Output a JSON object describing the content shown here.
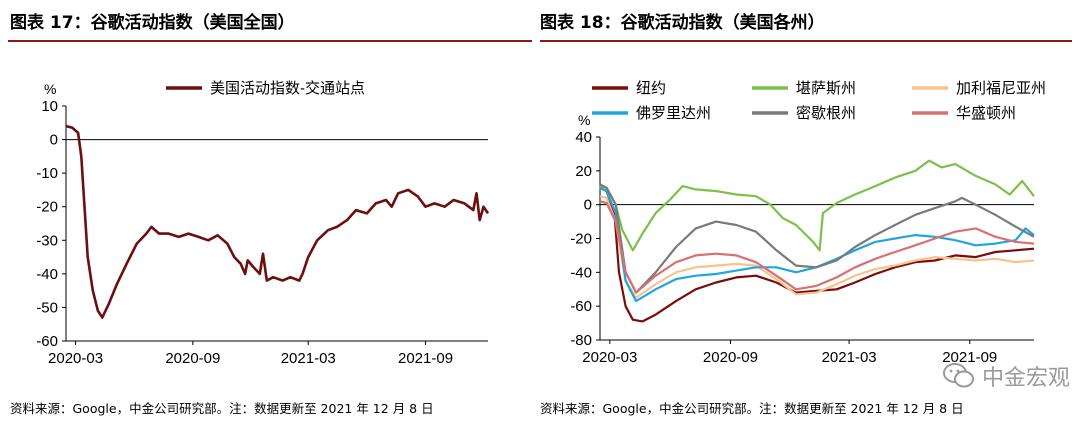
{
  "left": {
    "title": "图表 17：谷歌活动指数（美国全国）",
    "source": "资料来源：Google，中金公司研究部。注：数据更新至 2021 年 12 月 8 日",
    "unit": "%"
  },
  "right": {
    "title": "图表 18：谷歌活动指数（美国各州）",
    "source": "资料来源：Google，中金公司研究部。注：数据更新至 2021 年 12 月 8 日",
    "unit": "%"
  },
  "watermark": {
    "text": "中金宏观",
    "icon": "wechat-icon"
  },
  "chart_data": [
    {
      "type": "line",
      "ylim": [
        -60,
        10
      ],
      "yticks": [
        10,
        0,
        -10,
        -20,
        -30,
        -40,
        -50,
        -60
      ],
      "xticks": [
        "2020-03",
        "2020-09",
        "2021-03",
        "2021-09"
      ],
      "xrange": [
        "2020-02-15",
        "2021-12-08"
      ],
      "grid": false,
      "legend_position": "top-right",
      "series": [
        {
          "name": "美国活动指数-交通站点",
          "color": "#6b0f0f",
          "points": [
            [
              "2020-02-15",
              4
            ],
            [
              "2020-02-25",
              3.5
            ],
            [
              "2020-03-05",
              2
            ],
            [
              "2020-03-10",
              -5
            ],
            [
              "2020-03-15",
              -20
            ],
            [
              "2020-03-20",
              -35
            ],
            [
              "2020-03-28",
              -45
            ],
            [
              "2020-04-05",
              -51
            ],
            [
              "2020-04-12",
              -53
            ],
            [
              "2020-04-22",
              -49
            ],
            [
              "2020-05-05",
              -43
            ],
            [
              "2020-05-20",
              -37
            ],
            [
              "2020-06-05",
              -31
            ],
            [
              "2020-06-20",
              -28
            ],
            [
              "2020-06-28",
              -26
            ],
            [
              "2020-07-10",
              -28
            ],
            [
              "2020-07-25",
              -28
            ],
            [
              "2020-08-10",
              -29
            ],
            [
              "2020-08-25",
              -28
            ],
            [
              "2020-09-10",
              -29
            ],
            [
              "2020-09-25",
              -30
            ],
            [
              "2020-10-10",
              -28.5
            ],
            [
              "2020-10-25",
              -31
            ],
            [
              "2020-11-05",
              -35
            ],
            [
              "2020-11-15",
              -37
            ],
            [
              "2020-11-22",
              -40
            ],
            [
              "2020-11-26",
              -36
            ],
            [
              "2020-12-05",
              -38
            ],
            [
              "2020-12-15",
              -40
            ],
            [
              "2020-12-20",
              -34
            ],
            [
              "2020-12-26",
              -42
            ],
            [
              "2021-01-05",
              -41
            ],
            [
              "2021-01-20",
              -42
            ],
            [
              "2021-02-01",
              -41
            ],
            [
              "2021-02-15",
              -42
            ],
            [
              "2021-02-20",
              -40
            ],
            [
              "2021-03-01",
              -35
            ],
            [
              "2021-03-15",
              -30
            ],
            [
              "2021-04-01",
              -27
            ],
            [
              "2021-04-15",
              -26
            ],
            [
              "2021-05-01",
              -24
            ],
            [
              "2021-05-15",
              -21
            ],
            [
              "2021-06-01",
              -22
            ],
            [
              "2021-06-15",
              -19
            ],
            [
              "2021-07-01",
              -18
            ],
            [
              "2021-07-10",
              -20
            ],
            [
              "2021-07-20",
              -16
            ],
            [
              "2021-08-05",
              -15
            ],
            [
              "2021-08-20",
              -17
            ],
            [
              "2021-09-01",
              -20
            ],
            [
              "2021-09-15",
              -19
            ],
            [
              "2021-10-01",
              -20
            ],
            [
              "2021-10-15",
              -18
            ],
            [
              "2021-11-01",
              -19
            ],
            [
              "2021-11-15",
              -21
            ],
            [
              "2021-11-20",
              -16
            ],
            [
              "2021-11-25",
              -24
            ],
            [
              "2021-12-01",
              -20
            ],
            [
              "2021-12-08",
              -22
            ]
          ]
        }
      ]
    },
    {
      "type": "line",
      "ylim": [
        -80,
        40
      ],
      "yticks": [
        40,
        20,
        0,
        -20,
        -40,
        -60,
        -80
      ],
      "xticks": [
        "2020-03",
        "2020-09",
        "2021-03",
        "2021-09"
      ],
      "xrange": [
        "2020-02-15",
        "2021-12-08"
      ],
      "grid": false,
      "legend_position": "top",
      "series": [
        {
          "name": "纽约",
          "color": "#7a0c0c",
          "points": [
            [
              "2020-02-15",
              10
            ],
            [
              "2020-02-25",
              8
            ],
            [
              "2020-03-08",
              -5
            ],
            [
              "2020-03-15",
              -40
            ],
            [
              "2020-03-25",
              -60
            ],
            [
              "2020-04-05",
              -68
            ],
            [
              "2020-04-20",
              -69
            ],
            [
              "2020-05-10",
              -65
            ],
            [
              "2020-06-10",
              -57
            ],
            [
              "2020-07-10",
              -50
            ],
            [
              "2020-08-10",
              -46
            ],
            [
              "2020-09-10",
              -43
            ],
            [
              "2020-10-10",
              -42
            ],
            [
              "2020-11-10",
              -46
            ],
            [
              "2020-12-10",
              -52
            ],
            [
              "2021-01-10",
              -51
            ],
            [
              "2021-02-10",
              -50
            ],
            [
              "2021-03-10",
              -46
            ],
            [
              "2021-04-10",
              -41
            ],
            [
              "2021-05-10",
              -37
            ],
            [
              "2021-06-10",
              -34
            ],
            [
              "2021-07-10",
              -33
            ],
            [
              "2021-08-10",
              -30
            ],
            [
              "2021-09-10",
              -31
            ],
            [
              "2021-10-10",
              -28
            ],
            [
              "2021-11-10",
              -27
            ],
            [
              "2021-12-08",
              -26
            ]
          ]
        },
        {
          "name": "堪萨斯州",
          "color": "#7cc04a",
          "points": [
            [
              "2020-02-15",
              11
            ],
            [
              "2020-02-25",
              10
            ],
            [
              "2020-03-10",
              0
            ],
            [
              "2020-03-20",
              -15
            ],
            [
              "2020-04-05",
              -27
            ],
            [
              "2020-04-20",
              -17
            ],
            [
              "2020-05-10",
              -5
            ],
            [
              "2020-06-01",
              3
            ],
            [
              "2020-06-20",
              11
            ],
            [
              "2020-07-10",
              9
            ],
            [
              "2020-08-10",
              8
            ],
            [
              "2020-09-10",
              6
            ],
            [
              "2020-10-10",
              5
            ],
            [
              "2020-11-01",
              0
            ],
            [
              "2020-11-20",
              -8
            ],
            [
              "2020-12-10",
              -12
            ],
            [
              "2021-01-05",
              -22
            ],
            [
              "2021-01-15",
              -27
            ],
            [
              "2021-01-20",
              -5
            ],
            [
              "2021-02-10",
              1
            ],
            [
              "2021-03-10",
              6
            ],
            [
              "2021-04-10",
              11
            ],
            [
              "2021-05-10",
              16
            ],
            [
              "2021-06-10",
              20
            ],
            [
              "2021-07-01",
              26
            ],
            [
              "2021-07-20",
              22
            ],
            [
              "2021-08-10",
              24
            ],
            [
              "2021-09-10",
              17
            ],
            [
              "2021-10-10",
              12
            ],
            [
              "2021-11-01",
              6
            ],
            [
              "2021-11-20",
              14
            ],
            [
              "2021-12-08",
              5
            ]
          ]
        },
        {
          "name": "加利福尼亚州",
          "color": "#f6c38f",
          "points": [
            [
              "2020-02-15",
              5
            ],
            [
              "2020-02-25",
              4
            ],
            [
              "2020-03-10",
              -10
            ],
            [
              "2020-03-25",
              -45
            ],
            [
              "2020-04-10",
              -55
            ],
            [
              "2020-05-10",
              -47
            ],
            [
              "2020-06-10",
              -40
            ],
            [
              "2020-07-10",
              -37
            ],
            [
              "2020-08-10",
              -36
            ],
            [
              "2020-09-10",
              -35
            ],
            [
              "2020-10-10",
              -36
            ],
            [
              "2020-11-10",
              -44
            ],
            [
              "2020-12-10",
              -53
            ],
            [
              "2021-01-10",
              -52
            ],
            [
              "2021-02-10",
              -47
            ],
            [
              "2021-03-10",
              -42
            ],
            [
              "2021-04-10",
              -38
            ],
            [
              "2021-05-10",
              -36
            ],
            [
              "2021-06-10",
              -33
            ],
            [
              "2021-07-10",
              -31
            ],
            [
              "2021-08-10",
              -32
            ],
            [
              "2021-09-10",
              -33
            ],
            [
              "2021-10-10",
              -32
            ],
            [
              "2021-11-10",
              -34
            ],
            [
              "2021-12-08",
              -33
            ]
          ]
        },
        {
          "name": "佛罗里达州",
          "color": "#1fa6e0",
          "points": [
            [
              "2020-02-15",
              10
            ],
            [
              "2020-02-25",
              8
            ],
            [
              "2020-03-10",
              -5
            ],
            [
              "2020-03-25",
              -45
            ],
            [
              "2020-04-10",
              -57
            ],
            [
              "2020-05-10",
              -50
            ],
            [
              "2020-06-10",
              -44
            ],
            [
              "2020-07-10",
              -42
            ],
            [
              "2020-08-10",
              -41
            ],
            [
              "2020-09-10",
              -39
            ],
            [
              "2020-10-10",
              -37
            ],
            [
              "2020-11-10",
              -37
            ],
            [
              "2020-12-10",
              -40
            ],
            [
              "2021-01-10",
              -37
            ],
            [
              "2021-02-10",
              -32
            ],
            [
              "2021-03-10",
              -27
            ],
            [
              "2021-04-10",
              -22
            ],
            [
              "2021-05-10",
              -20
            ],
            [
              "2021-06-10",
              -18
            ],
            [
              "2021-07-10",
              -19
            ],
            [
              "2021-08-10",
              -21
            ],
            [
              "2021-09-10",
              -24
            ],
            [
              "2021-10-10",
              -23
            ],
            [
              "2021-11-10",
              -21
            ],
            [
              "2021-11-25",
              -14
            ],
            [
              "2021-12-08",
              -18
            ]
          ]
        },
        {
          "name": "密歇根州",
          "color": "#7a7a7a",
          "points": [
            [
              "2020-02-15",
              12
            ],
            [
              "2020-02-25",
              10
            ],
            [
              "2020-03-10",
              0
            ],
            [
              "2020-03-25",
              -40
            ],
            [
              "2020-04-10",
              -52
            ],
            [
              "2020-05-10",
              -40
            ],
            [
              "2020-06-10",
              -25
            ],
            [
              "2020-07-10",
              -14
            ],
            [
              "2020-08-10",
              -10
            ],
            [
              "2020-09-10",
              -12
            ],
            [
              "2020-10-10",
              -16
            ],
            [
              "2020-11-10",
              -27
            ],
            [
              "2020-12-10",
              -36
            ],
            [
              "2021-01-10",
              -37
            ],
            [
              "2021-02-10",
              -33
            ],
            [
              "2021-03-10",
              -25
            ],
            [
              "2021-04-10",
              -18
            ],
            [
              "2021-05-10",
              -12
            ],
            [
              "2021-06-10",
              -6
            ],
            [
              "2021-07-10",
              -2
            ],
            [
              "2021-08-10",
              2
            ],
            [
              "2021-08-20",
              4
            ],
            [
              "2021-09-10",
              0
            ],
            [
              "2021-10-10",
              -6
            ],
            [
              "2021-11-10",
              -13
            ],
            [
              "2021-12-08",
              -19
            ]
          ]
        },
        {
          "name": "华盛顿州",
          "color": "#d97070",
          "points": [
            [
              "2020-02-15",
              2
            ],
            [
              "2020-02-25",
              1
            ],
            [
              "2020-03-10",
              -10
            ],
            [
              "2020-03-25",
              -40
            ],
            [
              "2020-04-10",
              -52
            ],
            [
              "2020-05-10",
              -42
            ],
            [
              "2020-06-10",
              -34
            ],
            [
              "2020-07-10",
              -30
            ],
            [
              "2020-08-10",
              -29
            ],
            [
              "2020-09-10",
              -30
            ],
            [
              "2020-10-10",
              -34
            ],
            [
              "2020-11-10",
              -42
            ],
            [
              "2020-12-10",
              -50
            ],
            [
              "2021-01-10",
              -48
            ],
            [
              "2021-02-10",
              -43
            ],
            [
              "2021-03-10",
              -37
            ],
            [
              "2021-04-10",
              -32
            ],
            [
              "2021-05-10",
              -28
            ],
            [
              "2021-06-10",
              -24
            ],
            [
              "2021-07-10",
              -20
            ],
            [
              "2021-08-10",
              -16
            ],
            [
              "2021-09-10",
              -14
            ],
            [
              "2021-10-10",
              -19
            ],
            [
              "2021-11-10",
              -22
            ],
            [
              "2021-12-08",
              -23
            ]
          ]
        }
      ]
    }
  ]
}
